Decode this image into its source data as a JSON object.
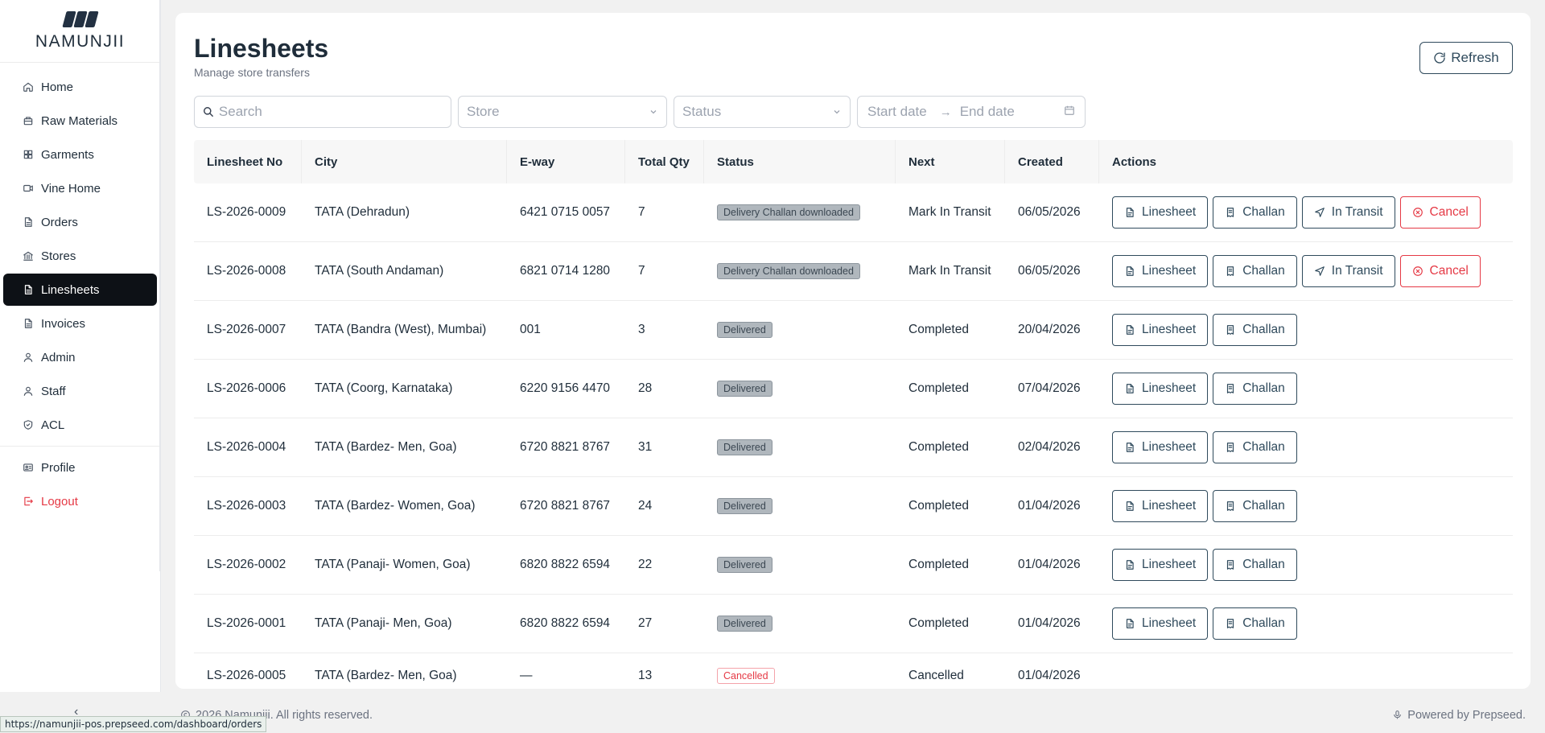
{
  "brand": {
    "name": "NAMUNJII"
  },
  "sidebar": {
    "items": [
      {
        "label": "Home",
        "icon": "home-icon"
      },
      {
        "label": "Raw Materials",
        "icon": "package-icon"
      },
      {
        "label": "Garments",
        "icon": "grid-icon"
      },
      {
        "label": "Vine Home",
        "icon": "video-icon"
      },
      {
        "label": "Orders",
        "icon": "file-icon"
      },
      {
        "label": "Stores",
        "icon": "bank-icon"
      },
      {
        "label": "Linesheets",
        "icon": "file-icon",
        "active": true
      },
      {
        "label": "Invoices",
        "icon": "file-icon"
      },
      {
        "label": "Admin",
        "icon": "user-icon"
      },
      {
        "label": "Staff",
        "icon": "user-icon"
      },
      {
        "label": "ACL",
        "icon": "shield-icon"
      }
    ],
    "bottom": [
      {
        "label": "Profile",
        "icon": "id-card-icon"
      },
      {
        "label": "Logout",
        "icon": "logout-icon"
      }
    ],
    "collapse": "‹"
  },
  "header": {
    "title": "Linesheets",
    "subtitle": "Manage store transfers",
    "refresh_label": "Refresh"
  },
  "filters": {
    "search_placeholder": "Search",
    "store_placeholder": "Store",
    "status_placeholder": "Status",
    "start_date_placeholder": "Start date",
    "end_date_placeholder": "End date"
  },
  "table": {
    "columns": [
      "Linesheet No",
      "City",
      "E-way",
      "Total Qty",
      "Status",
      "Next",
      "Created",
      "Actions"
    ],
    "rows": [
      {
        "no": "LS-2026-0009",
        "city": "TATA (Dehradun)",
        "eway": "6421 0715 0057",
        "qty": "7",
        "status": "Delivery Challan downloaded",
        "status_type": "grey",
        "next": "Mark In Transit",
        "created": "06/05/2026",
        "actions": [
          "Linesheet",
          "Challan",
          "In Transit",
          "Cancel"
        ]
      },
      {
        "no": "LS-2026-0008",
        "city": "TATA (South Andaman)",
        "eway": "6821 0714 1280",
        "qty": "7",
        "status": "Delivery Challan downloaded",
        "status_type": "grey",
        "next": "Mark In Transit",
        "created": "06/05/2026",
        "actions": [
          "Linesheet",
          "Challan",
          "In Transit",
          "Cancel"
        ]
      },
      {
        "no": "LS-2026-0007",
        "city": "TATA (Bandra (West), Mumbai)",
        "eway": "001",
        "qty": "3",
        "status": "Delivered",
        "status_type": "grey",
        "next": "Completed",
        "created": "20/04/2026",
        "actions": [
          "Linesheet",
          "Challan"
        ]
      },
      {
        "no": "LS-2026-0006",
        "city": "TATA (Coorg, Karnataka)",
        "eway": "6220 9156 4470",
        "qty": "28",
        "status": "Delivered",
        "status_type": "grey",
        "next": "Completed",
        "created": "07/04/2026",
        "actions": [
          "Linesheet",
          "Challan"
        ]
      },
      {
        "no": "LS-2026-0004",
        "city": "TATA (Bardez- Men, Goa)",
        "eway": "6720 8821 8767",
        "qty": "31",
        "status": "Delivered",
        "status_type": "grey",
        "next": "Completed",
        "created": "02/04/2026",
        "actions": [
          "Linesheet",
          "Challan"
        ]
      },
      {
        "no": "LS-2026-0003",
        "city": "TATA (Bardez- Women, Goa)",
        "eway": "6720 8821 8767",
        "qty": "24",
        "status": "Delivered",
        "status_type": "grey",
        "next": "Completed",
        "created": "01/04/2026",
        "actions": [
          "Linesheet",
          "Challan"
        ]
      },
      {
        "no": "LS-2026-0002",
        "city": "TATA (Panaji- Women, Goa)",
        "eway": "6820 8822 6594",
        "qty": "22",
        "status": "Delivered",
        "status_type": "grey",
        "next": "Completed",
        "created": "01/04/2026",
        "actions": [
          "Linesheet",
          "Challan"
        ]
      },
      {
        "no": "LS-2026-0001",
        "city": "TATA (Panaji- Men, Goa)",
        "eway": "6820 8822 6594",
        "qty": "27",
        "status": "Delivered",
        "status_type": "grey",
        "next": "Completed",
        "created": "01/04/2026",
        "actions": [
          "Linesheet",
          "Challan"
        ]
      },
      {
        "no": "LS-2026-0005",
        "city": "TATA (Bardez- Men, Goa)",
        "eway": "—",
        "qty": "13",
        "status": "Cancelled",
        "status_type": "red",
        "next": "Cancelled",
        "created": "01/04/2026",
        "actions": []
      }
    ]
  },
  "footer": {
    "copyright": "2026 Namunjii. All rights reserved.",
    "powered": "Powered by Prepseed."
  },
  "status_bar": {
    "url": "https://namunjii-pos.prepseed.com/dashboard/orders"
  },
  "colors": {
    "accent": "#2f4a5c",
    "danger": "#e53945",
    "active_nav": "#0d1116"
  }
}
